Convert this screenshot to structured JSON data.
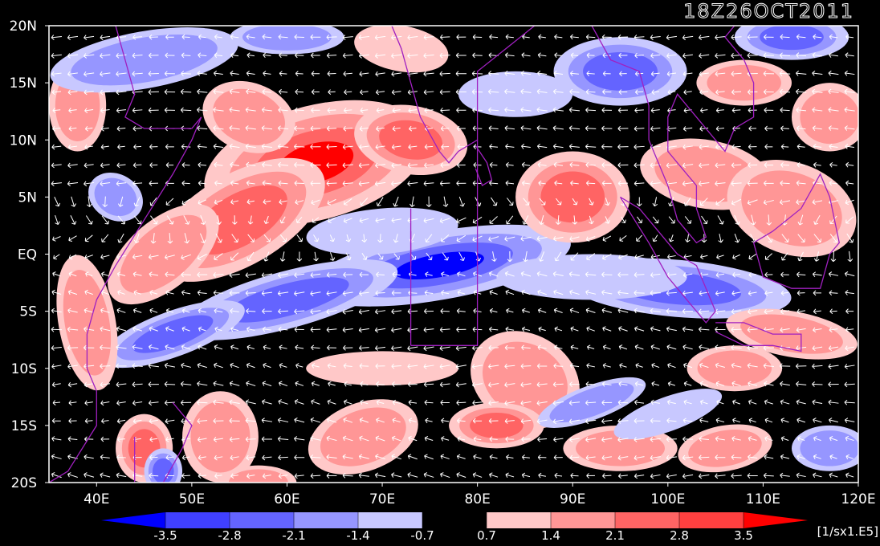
{
  "title": "18Z26OCT2011",
  "map": {
    "lat_labels": [
      "20N",
      "15N",
      "10N",
      "5N",
      "EQ",
      "5S",
      "10S",
      "15S",
      "20S"
    ],
    "lat_values": [
      20,
      15,
      10,
      5,
      0,
      -5,
      -10,
      -15,
      -20
    ],
    "lon_labels": [
      "40E",
      "50E",
      "60E",
      "70E",
      "80E",
      "90E",
      "100E",
      "110E",
      "120E"
    ],
    "lon_values": [
      40,
      50,
      60,
      70,
      80,
      90,
      100,
      110,
      120
    ],
    "lon_range": [
      35,
      120
    ],
    "lat_range": [
      -20,
      20
    ],
    "field": "vorticity",
    "vector_field": "wind",
    "vector_color": "#ffffff",
    "coastline_color": "#a020c0",
    "background": "#000000"
  },
  "colorbar": {
    "labels": [
      "-3.5",
      "-2.8",
      "-2.1",
      "-1.4",
      "-0.7",
      "0.7",
      "1.4",
      "2.1",
      "2.8",
      "3.5"
    ],
    "colors": [
      "#0000ff",
      "#4040ff",
      "#6464ff",
      "#9696ff",
      "#c8c8ff",
      "#000000",
      "#ffc8c8",
      "#ff9696",
      "#ff6464",
      "#ff4040",
      "#ff0000"
    ],
    "units": "[1/sx1.E5]"
  }
}
